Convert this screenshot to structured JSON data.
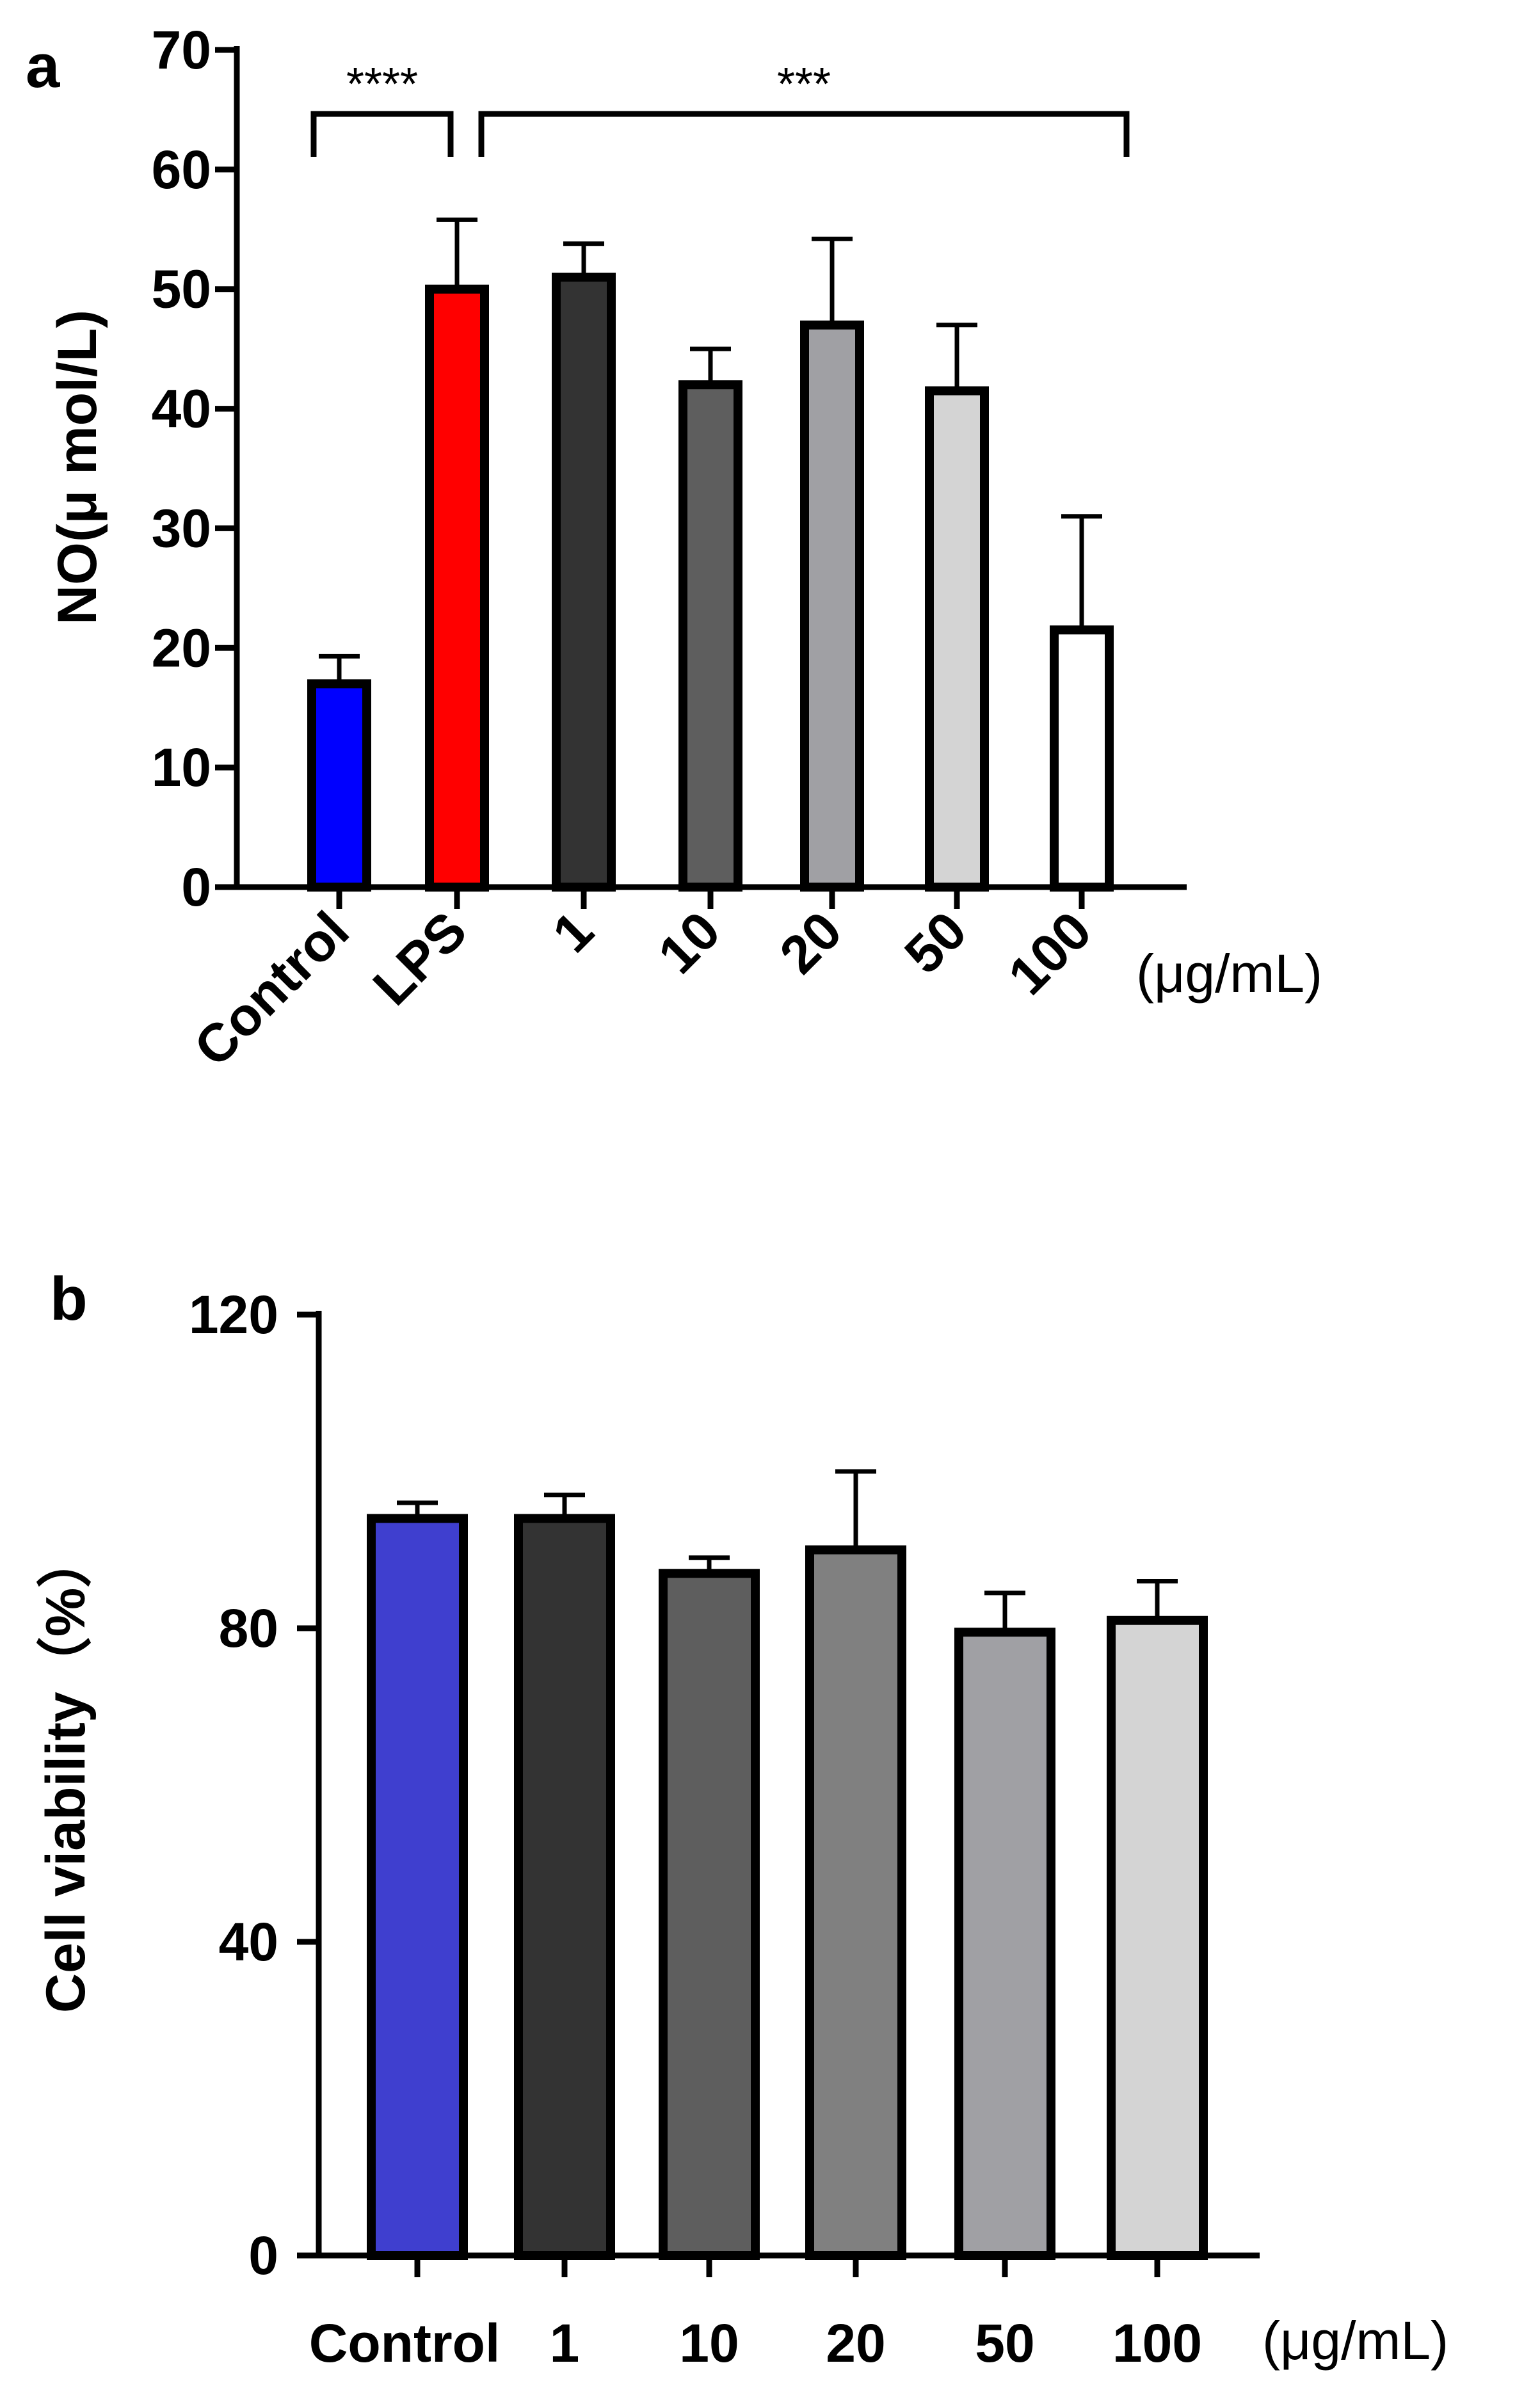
{
  "chart_data": [
    {
      "panel": "a",
      "type": "bar",
      "ylabel": "NO(μ mol/L)",
      "unit_label": "(μg/mL)",
      "ylim": [
        0,
        70
      ],
      "yticks": [
        0,
        10,
        20,
        30,
        40,
        50,
        60,
        70
      ],
      "categories": [
        "Control",
        "LPS",
        "1",
        "10",
        "20",
        "50",
        "100"
      ],
      "values": [
        17,
        50,
        51,
        42,
        47,
        41.5,
        21.5
      ],
      "errors": [
        2.3,
        5.8,
        2.8,
        3,
        7.2,
        5.5,
        9.5
      ],
      "colors": [
        "#0000ff",
        "#ff0000",
        "#333333",
        "#5e5e5e",
        "#a0a0a4",
        "#d4d4d4",
        "#ffffff"
      ],
      "significance": [
        {
          "label": "****",
          "from": 0,
          "to": 1
        },
        {
          "label": "***",
          "from": 1,
          "to": 6
        }
      ]
    },
    {
      "panel": "b",
      "type": "bar",
      "ylabel": "Cell viability（%）",
      "unit_label": "(μg/mL)",
      "ylim": [
        0,
        120
      ],
      "yticks": [
        0,
        40,
        80,
        120
      ],
      "categories": [
        "Control",
        "1",
        "10",
        "20",
        "50",
        "100"
      ],
      "values": [
        94,
        94,
        87,
        90,
        79.5,
        81
      ],
      "errors": [
        2,
        3,
        2,
        10,
        5,
        5
      ],
      "colors": [
        "#3f3fcf",
        "#333333",
        "#5e5e5e",
        "#808080",
        "#a0a0a4",
        "#d4d4d4"
      ]
    }
  ]
}
